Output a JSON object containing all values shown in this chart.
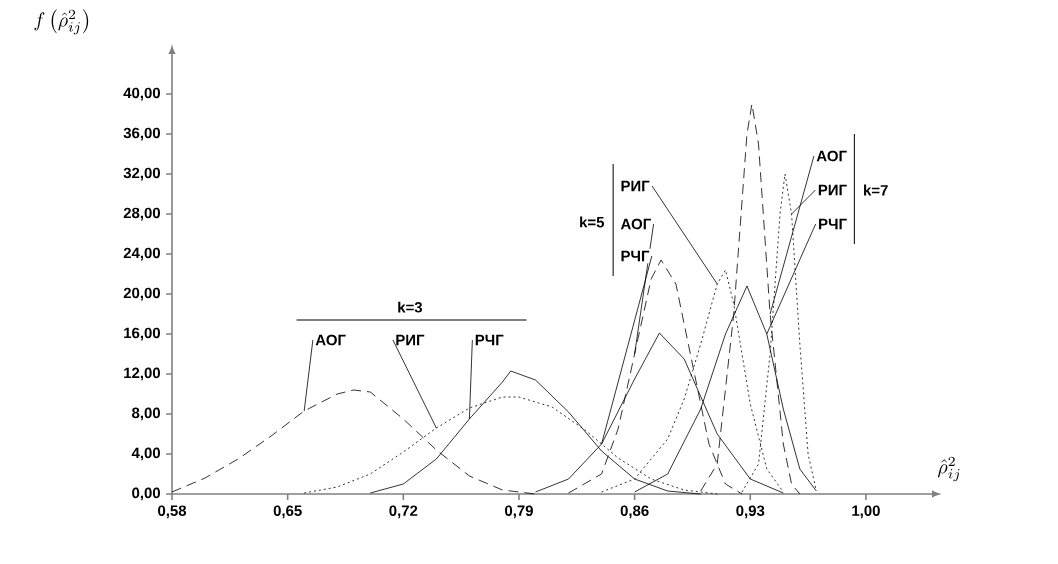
{
  "chart_data": {
    "type": "line",
    "xlabel": "\\hat{\\rho}_{ij}^{2}",
    "ylabel": "f\\left(\\hat{\\rho}_{ij}^{2}\\right)",
    "xlim": [
      0.58,
      1.04
    ],
    "ylim": [
      0,
      44
    ],
    "xticks": [
      {
        "value": 0.58,
        "label": "0,58"
      },
      {
        "value": 0.65,
        "label": "0,65"
      },
      {
        "value": 0.72,
        "label": "0,72"
      },
      {
        "value": 0.79,
        "label": "0,79"
      },
      {
        "value": 0.86,
        "label": "0,86"
      },
      {
        "value": 0.93,
        "label": "0,93"
      },
      {
        "value": 1.0,
        "label": "1,00"
      }
    ],
    "yticks": [
      {
        "value": 0,
        "label": "0,00"
      },
      {
        "value": 4,
        "label": "4,00"
      },
      {
        "value": 8,
        "label": "8,00"
      },
      {
        "value": 12,
        "label": "12,00"
      },
      {
        "value": 16,
        "label": "16,00"
      },
      {
        "value": 20,
        "label": "20,00"
      },
      {
        "value": 24,
        "label": "24,00"
      },
      {
        "value": 28,
        "label": "28,00"
      },
      {
        "value": 32,
        "label": "32,00"
      },
      {
        "value": 36,
        "label": "36,00"
      },
      {
        "value": 40,
        "label": "40,00"
      }
    ],
    "annotations": [
      "k=3",
      "k=5",
      "k=7"
    ],
    "grid": false,
    "marker": "none",
    "series": [
      {
        "name": "АОГ",
        "color": "#000000",
        "line_style": "dashed",
        "x": [
          0.58,
          0.6,
          0.62,
          0.64,
          0.66,
          0.68,
          0.69,
          0.7,
          0.72,
          0.74,
          0.76,
          0.78,
          0.8
        ],
        "values": [
          0.2,
          1.6,
          3.5,
          5.8,
          8.3,
          10.0,
          10.4,
          10.2,
          7.5,
          4.4,
          1.8,
          0.4,
          0
        ]
      },
      {
        "name": "РИГ",
        "color": "#000000",
        "line_style": "dotted",
        "x": [
          0.66,
          0.68,
          0.7,
          0.72,
          0.74,
          0.76,
          0.78,
          0.79,
          0.81,
          0.83,
          0.85,
          0.87,
          0.89,
          0.91
        ],
        "values": [
          0.1,
          0.7,
          2.0,
          4.2,
          6.6,
          8.6,
          9.7,
          9.7,
          8.7,
          6.4,
          3.6,
          1.5,
          0.4,
          0
        ]
      },
      {
        "name": "РЧГ",
        "color": "#000000",
        "line_style": "solid",
        "x": [
          0.7,
          0.72,
          0.74,
          0.76,
          0.78,
          0.785,
          0.8,
          0.82,
          0.84,
          0.86,
          0.88,
          0.9
        ],
        "values": [
          0.1,
          1.0,
          3.5,
          7.5,
          11.2,
          12.3,
          11.4,
          8.2,
          4.3,
          1.5,
          0.3,
          0
        ]
      },
      {
        "name": "РИГ",
        "color": "#000000",
        "line_style": "dotted",
        "x": [
          0.84,
          0.86,
          0.88,
          0.89,
          0.9,
          0.91,
          0.915,
          0.92,
          0.93,
          0.94,
          0.95
        ],
        "values": [
          0.2,
          1.5,
          5.5,
          9.5,
          15,
          21,
          22.4,
          19,
          9,
          2.5,
          0.2
        ]
      },
      {
        "name": "АОГ",
        "color": "#000000",
        "line_style": "dashed",
        "x": [
          0.82,
          0.84,
          0.85,
          0.86,
          0.87,
          0.876,
          0.885,
          0.895,
          0.905,
          0.915,
          0.925
        ],
        "values": [
          0.1,
          2.0,
          6.5,
          14,
          21.5,
          23.4,
          21,
          13,
          5,
          1,
          0
        ]
      },
      {
        "name": "РЧГ",
        "color": "#000000",
        "line_style": "solid",
        "x": [
          0.8,
          0.82,
          0.84,
          0.86,
          0.875,
          0.89,
          0.91,
          0.93,
          0.95
        ],
        "values": [
          0.2,
          1.5,
          5.0,
          11.5,
          16.1,
          13.5,
          6.0,
          1.5,
          0.1
        ]
      },
      {
        "name": "АОГ",
        "color": "#000000",
        "line_style": "dashed",
        "x": [
          0.9,
          0.91,
          0.92,
          0.928,
          0.931,
          0.935,
          0.942,
          0.95,
          0.955,
          0.96
        ],
        "values": [
          0.3,
          3,
          18,
          36,
          39,
          35,
          18,
          5,
          1,
          0
        ]
      },
      {
        "name": "РИГ",
        "color": "#000000",
        "line_style": "dotted",
        "x": [
          0.925,
          0.935,
          0.942,
          0.948,
          0.951,
          0.955,
          0.96,
          0.965,
          0.97
        ],
        "values": [
          0.2,
          3,
          14,
          28,
          32,
          28,
          15,
          4,
          0.3
        ]
      },
      {
        "name": "РЧГ",
        "color": "#000000",
        "line_style": "solid",
        "x": [
          0.86,
          0.88,
          0.9,
          0.915,
          0.928,
          0.94,
          0.95,
          0.96,
          0.97
        ],
        "values": [
          0.2,
          2.0,
          8.5,
          16,
          20.8,
          16,
          8.5,
          2.5,
          0.3
        ]
      }
    ]
  }
}
